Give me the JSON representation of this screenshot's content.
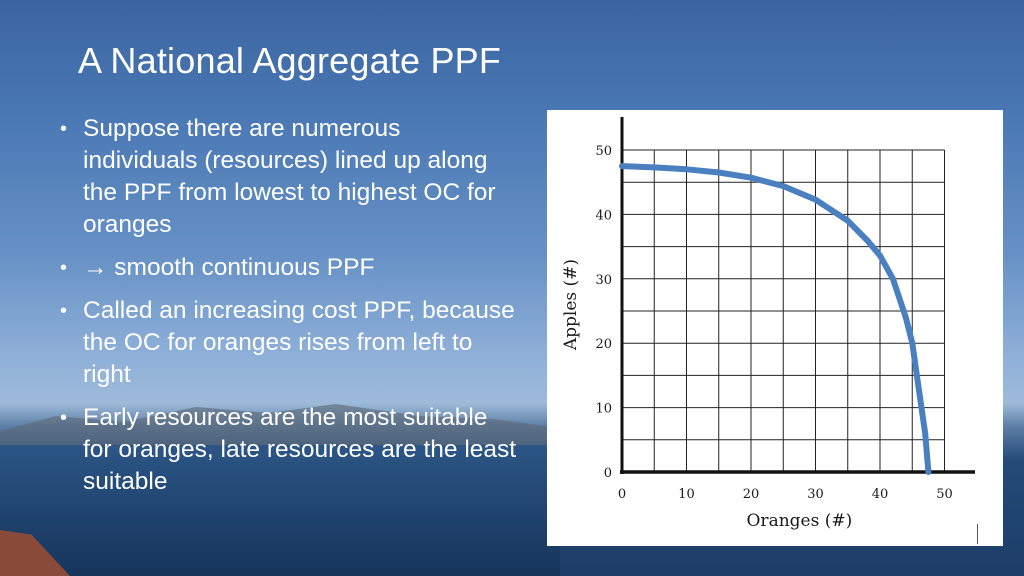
{
  "slide": {
    "title": "A National Aggregate PPF",
    "bullets": [
      "Suppose there are numerous individuals (resources) lined up along the PPF from lowest to highest OC for oranges",
      "→ smooth continuous PPF",
      "Called an increasing cost PPF, because the OC for oranges rises from left to right",
      "Early resources are the most suitable for oranges, late resources are the least suitable"
    ],
    "bullet_glyph": "•"
  },
  "chart_data": {
    "type": "line",
    "title": "",
    "xlabel": "Oranges (#)",
    "ylabel": "Apples (#)",
    "xlim": [
      0,
      55
    ],
    "ylim": [
      0,
      50
    ],
    "x_ticks": [
      0,
      10,
      20,
      30,
      40,
      50
    ],
    "y_ticks": [
      0,
      10,
      20,
      30,
      40,
      50
    ],
    "grid": true,
    "series": [
      {
        "color": "#4a7fc0",
        "x": [
          0,
          5,
          10,
          15,
          20,
          25,
          30,
          35,
          38,
          40,
          42,
          44,
          45,
          46,
          47,
          47.5
        ],
        "y": [
          47.5,
          47.3,
          47,
          46.5,
          45.7,
          44.4,
          42.3,
          39,
          36,
          33.6,
          30,
          24,
          20,
          13,
          6,
          0
        ]
      }
    ]
  }
}
